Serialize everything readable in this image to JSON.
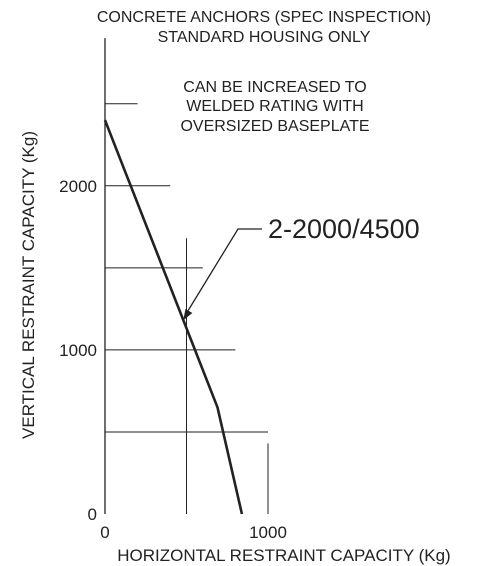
{
  "colors": {
    "ink": "#222222",
    "background": "#ffffff"
  },
  "chart_data": {
    "type": "line",
    "title": [
      "CONCRETE ANCHORS (SPEC INSPECTION)",
      "STANDARD HOUSING ONLY"
    ],
    "xlabel": "HORIZONTAL RESTRAINT CAPACITY (Kg)",
    "ylabel": "VERTICAL RESTRAINT CAPACITY (Kg)",
    "xlim": [
      0,
      1200
    ],
    "ylim": [
      0,
      2900
    ],
    "x_ticks": [
      {
        "value": 0,
        "label": "0"
      },
      {
        "value": 1000,
        "label": "1000"
      }
    ],
    "y_ticks": [
      {
        "value": 0,
        "label": "0"
      },
      {
        "value": 1000,
        "label": "1000"
      },
      {
        "value": 2000,
        "label": "2000"
      }
    ],
    "reference_lines": {
      "horizontal": [
        {
          "y": 500,
          "x_end": 1000
        },
        {
          "y": 1000,
          "x_end": 800
        },
        {
          "y": 1500,
          "x_end": 600
        },
        {
          "y": 2000,
          "x_end": 400
        },
        {
          "y": 2500,
          "x_end": 200
        }
      ],
      "vertical": [
        {
          "x": 500,
          "y_end": 1680
        },
        {
          "x": 1000,
          "y_end": 430
        }
      ]
    },
    "series": [
      {
        "name": "2-2000/4500",
        "x": [
          0,
          690,
          840
        ],
        "y": [
          2400,
          650,
          0
        ]
      }
    ],
    "annotations": [
      {
        "text": [
          "CAN BE INCREASED TO",
          "WELDED RATING WITH",
          "OVERSIZED BASEPLATE"
        ]
      }
    ],
    "series_label": {
      "text": "2-2000/4500",
      "points_to": {
        "x": 480,
        "y": 1180
      }
    }
  }
}
